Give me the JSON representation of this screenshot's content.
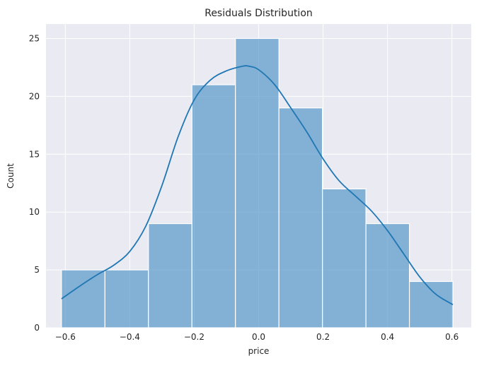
{
  "chart_data": {
    "type": "bar",
    "title": "Residuals Distribution",
    "xlabel": "price",
    "ylabel": "Count",
    "xlim": [
      -0.66,
      0.66
    ],
    "ylim": [
      0,
      26.25
    ],
    "xticks": [
      -0.6,
      -0.4,
      -0.2,
      0.0,
      0.2,
      0.4,
      0.6
    ],
    "xtick_labels": [
      "−0.6",
      "−0.4",
      "−0.2",
      "0.0",
      "0.2",
      "0.4",
      "0.6"
    ],
    "yticks": [
      0,
      5,
      10,
      15,
      20,
      25
    ],
    "ytick_labels": [
      "0",
      "5",
      "10",
      "15",
      "20",
      "25"
    ],
    "grid": true,
    "bins": [
      {
        "x0": -0.612,
        "x1": -0.477,
        "count": 5
      },
      {
        "x0": -0.477,
        "x1": -0.342,
        "count": 5
      },
      {
        "x0": -0.342,
        "x1": -0.207,
        "count": 9
      },
      {
        "x0": -0.207,
        "x1": -0.072,
        "count": 21
      },
      {
        "x0": -0.072,
        "x1": 0.063,
        "count": 25
      },
      {
        "x0": 0.063,
        "x1": 0.198,
        "count": 19
      },
      {
        "x0": 0.198,
        "x1": 0.333,
        "count": 12
      },
      {
        "x0": 0.333,
        "x1": 0.468,
        "count": 9
      },
      {
        "x0": 0.468,
        "x1": 0.603,
        "count": 4
      }
    ],
    "kde": {
      "x": [
        -0.612,
        -0.55,
        -0.5,
        -0.45,
        -0.4,
        -0.35,
        -0.3,
        -0.25,
        -0.2,
        -0.15,
        -0.1,
        -0.05,
        -0.03,
        0.0,
        0.05,
        0.1,
        0.15,
        0.2,
        0.25,
        0.3,
        0.35,
        0.4,
        0.45,
        0.5,
        0.55,
        0.603
      ],
      "y": [
        2.5,
        3.7,
        4.6,
        5.4,
        6.6,
        8.8,
        12.3,
        16.5,
        19.7,
        21.4,
        22.2,
        22.6,
        22.6,
        22.3,
        21.0,
        19.0,
        16.9,
        14.6,
        12.7,
        11.4,
        10.1,
        8.4,
        6.4,
        4.4,
        2.9,
        2.0
      ]
    },
    "colors": {
      "bar_fill": "#4c91c4",
      "bar_stroke": "#ffffff",
      "kde_line": "#1f77b4",
      "plot_bg": "#eaeaf2",
      "grid": "#ffffff"
    }
  }
}
